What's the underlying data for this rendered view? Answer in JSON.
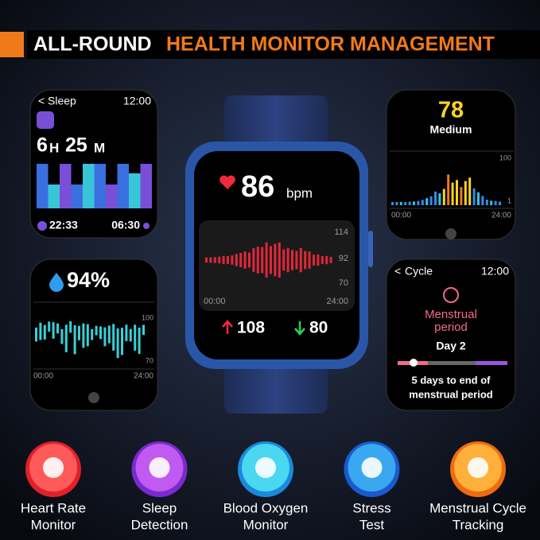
{
  "header": {
    "title_white": "ALL-ROUND",
    "title_orange": "HEALTH MONITOR MANAGEMENT"
  },
  "sleep": {
    "back": "Sleep",
    "time": "12:00",
    "hours": "6",
    "hours_unit": "H",
    "minutes": "25",
    "minutes_unit": "M",
    "start": "22:33",
    "end": "06:30"
  },
  "stress": {
    "value": "78",
    "level": "Medium",
    "axis_top": "100",
    "axis_bottom": "1",
    "start": "00:00",
    "end": "24:00"
  },
  "watch": {
    "heart_rate": "86",
    "unit": "bpm",
    "axis": [
      "114",
      "92",
      "70"
    ],
    "start": "00:00",
    "end": "24:00",
    "max": "108",
    "min": "80"
  },
  "oxygen": {
    "value": "94%",
    "axis_top": "100",
    "axis_bottom": "70",
    "start": "00:00",
    "end": "24:00"
  },
  "cycle": {
    "back": "Cycle",
    "time": "12:00",
    "phase": [
      "Menstrual",
      "period"
    ],
    "day": "Day 2",
    "note": [
      "5 days to end of",
      "menstrual period"
    ]
  },
  "features": [
    {
      "lines": [
        "Heart Rate",
        "Monitor"
      ]
    },
    {
      "lines": [
        "Sleep",
        "Detection"
      ]
    },
    {
      "lines": [
        "Blood Oxygen",
        "Monitor"
      ]
    },
    {
      "lines": [
        "Stress",
        "Test"
      ]
    },
    {
      "lines": [
        "Menstrual Cycle",
        "Tracking"
      ]
    }
  ]
}
